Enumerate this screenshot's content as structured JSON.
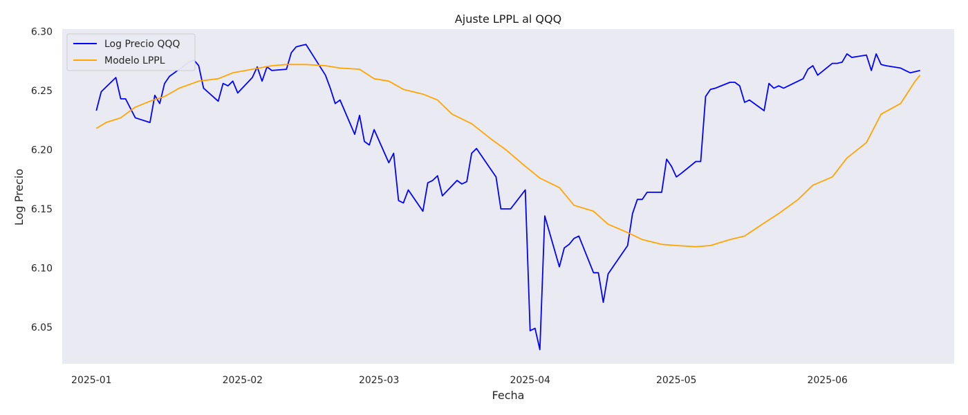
{
  "chart_data": {
    "type": "line",
    "title": "Ajuste LPPL al QQQ",
    "xlabel": "Fecha",
    "ylabel": "Log Precio",
    "x_ticks": [
      "2025-01-01",
      "2025-02-01",
      "2025-03-01",
      "2025-04-01",
      "2025-05-01",
      "2025-06-01"
    ],
    "x_tick_labels": [
      "2025-01",
      "2025-02",
      "2025-03",
      "2025-04",
      "2025-05",
      "2025-06"
    ],
    "y_ticks": [
      6.05,
      6.1,
      6.15,
      6.2,
      6.25,
      6.3
    ],
    "y_tick_labels": [
      "6.05",
      "6.10",
      "6.15",
      "6.20",
      "6.25",
      "6.30"
    ],
    "xlim": [
      "2024-12-26",
      "2025-06-27"
    ],
    "ylim": [
      6.019,
      6.302
    ],
    "grid": false,
    "background": "#eaeaf2",
    "legend_position": "top-left",
    "series": [
      {
        "name": "Log Precio QQQ",
        "color": "#0000ff",
        "x": [
          "2025-01-02",
          "2025-01-03",
          "2025-01-06",
          "2025-01-07",
          "2025-01-08",
          "2025-01-10",
          "2025-01-13",
          "2025-01-14",
          "2025-01-15",
          "2025-01-16",
          "2025-01-17",
          "2025-01-21",
          "2025-01-22",
          "2025-01-23",
          "2025-01-24",
          "2025-01-27",
          "2025-01-28",
          "2025-01-29",
          "2025-01-30",
          "2025-01-31",
          "2025-02-03",
          "2025-02-04",
          "2025-02-05",
          "2025-02-06",
          "2025-02-07",
          "2025-02-10",
          "2025-02-11",
          "2025-02-12",
          "2025-02-13",
          "2025-02-14",
          "2025-02-18",
          "2025-02-19",
          "2025-02-20",
          "2025-02-21",
          "2025-02-24",
          "2025-02-25",
          "2025-02-26",
          "2025-02-27",
          "2025-02-28",
          "2025-03-03",
          "2025-03-04",
          "2025-03-05",
          "2025-03-06",
          "2025-03-07",
          "2025-03-10",
          "2025-03-11",
          "2025-03-12",
          "2025-03-13",
          "2025-03-14",
          "2025-03-17",
          "2025-03-18",
          "2025-03-19",
          "2025-03-20",
          "2025-03-21",
          "2025-03-24",
          "2025-03-25",
          "2025-03-26",
          "2025-03-27",
          "2025-03-28",
          "2025-03-31",
          "2025-04-01",
          "2025-04-02",
          "2025-04-03",
          "2025-04-04",
          "2025-04-07",
          "2025-04-08",
          "2025-04-09",
          "2025-04-10",
          "2025-04-11",
          "2025-04-14",
          "2025-04-15",
          "2025-04-16",
          "2025-04-17",
          "2025-04-21",
          "2025-04-22",
          "2025-04-23",
          "2025-04-24",
          "2025-04-25",
          "2025-04-28",
          "2025-04-29",
          "2025-04-30",
          "2025-05-01",
          "2025-05-02",
          "2025-05-05",
          "2025-05-06",
          "2025-05-07",
          "2025-05-08",
          "2025-05-09",
          "2025-05-12",
          "2025-05-13",
          "2025-05-14",
          "2025-05-15",
          "2025-05-16",
          "2025-05-19",
          "2025-05-20",
          "2025-05-21",
          "2025-05-22",
          "2025-05-23",
          "2025-05-27",
          "2025-05-28",
          "2025-05-29",
          "2025-05-30",
          "2025-06-02",
          "2025-06-03",
          "2025-06-04",
          "2025-06-05",
          "2025-06-06",
          "2025-06-09",
          "2025-06-10",
          "2025-06-11",
          "2025-06-12",
          "2025-06-13",
          "2025-06-16",
          "2025-06-17",
          "2025-06-18",
          "2025-06-20"
        ],
        "y": [
          6.233,
          6.249,
          6.261,
          6.243,
          6.243,
          6.227,
          6.223,
          6.246,
          6.239,
          6.256,
          6.262,
          6.274,
          6.276,
          6.271,
          6.252,
          6.241,
          6.256,
          6.254,
          6.258,
          6.248,
          6.261,
          6.27,
          6.258,
          6.27,
          6.267,
          6.268,
          6.282,
          6.287,
          6.288,
          6.289,
          6.263,
          6.252,
          6.239,
          6.242,
          6.213,
          6.229,
          6.207,
          6.204,
          6.217,
          6.189,
          6.197,
          6.157,
          6.155,
          6.166,
          6.148,
          6.172,
          6.174,
          6.178,
          6.161,
          6.174,
          6.171,
          6.173,
          6.197,
          6.201,
          6.183,
          6.177,
          6.15,
          6.15,
          6.15,
          6.166,
          6.047,
          6.049,
          6.031,
          6.144,
          6.101,
          6.117,
          6.12,
          6.125,
          6.127,
          6.096,
          6.096,
          6.071,
          6.095,
          6.119,
          6.146,
          6.158,
          6.158,
          6.164,
          6.164,
          6.192,
          6.186,
          6.177,
          6.18,
          6.19,
          6.19,
          6.245,
          6.251,
          6.252,
          6.257,
          6.257,
          6.254,
          6.24,
          6.242,
          6.233,
          6.256,
          6.252,
          6.254,
          6.252,
          6.26,
          6.268,
          6.271,
          6.263,
          6.273,
          6.273,
          6.274,
          6.281,
          6.278,
          6.28,
          6.267,
          6.281,
          6.272,
          6.271,
          6.269,
          6.267,
          6.265,
          6.267
        ]
      },
      {
        "name": "Modelo LPPL",
        "color": "#ffa500",
        "x": [
          "2025-01-02",
          "2025-01-04",
          "2025-01-07",
          "2025-01-10",
          "2025-01-13",
          "2025-01-16",
          "2025-01-19",
          "2025-01-23",
          "2025-01-27",
          "2025-01-30",
          "2025-02-03",
          "2025-02-07",
          "2025-02-10",
          "2025-02-14",
          "2025-02-18",
          "2025-02-21",
          "2025-02-25",
          "2025-02-28",
          "2025-03-03",
          "2025-03-06",
          "2025-03-10",
          "2025-03-13",
          "2025-03-16",
          "2025-03-20",
          "2025-03-24",
          "2025-03-27",
          "2025-03-31",
          "2025-04-03",
          "2025-04-07",
          "2025-04-10",
          "2025-04-14",
          "2025-04-17",
          "2025-04-21",
          "2025-04-24",
          "2025-04-28",
          "2025-05-01",
          "2025-05-05",
          "2025-05-08",
          "2025-05-12",
          "2025-05-15",
          "2025-05-19",
          "2025-05-22",
          "2025-05-26",
          "2025-05-29",
          "2025-06-02",
          "2025-06-05",
          "2025-06-09",
          "2025-06-12",
          "2025-06-16",
          "2025-06-19",
          "2025-06-20"
        ],
        "y": [
          6.218,
          6.223,
          6.227,
          6.236,
          6.241,
          6.245,
          6.252,
          6.258,
          6.26,
          6.265,
          6.268,
          6.271,
          6.272,
          6.272,
          6.271,
          6.269,
          6.268,
          6.26,
          6.258,
          6.251,
          6.247,
          6.242,
          6.23,
          6.222,
          6.209,
          6.2,
          6.186,
          6.176,
          6.168,
          6.153,
          6.148,
          6.137,
          6.13,
          6.124,
          6.12,
          6.119,
          6.118,
          6.119,
          6.124,
          6.127,
          6.138,
          6.146,
          6.158,
          6.17,
          6.177,
          6.193,
          6.206,
          6.23,
          6.239,
          6.258,
          6.263
        ]
      }
    ]
  },
  "legend": {
    "items": [
      {
        "label": "Log Precio QQQ",
        "color": "#0000ff"
      },
      {
        "label": "Modelo LPPL",
        "color": "#ffa500"
      }
    ]
  }
}
